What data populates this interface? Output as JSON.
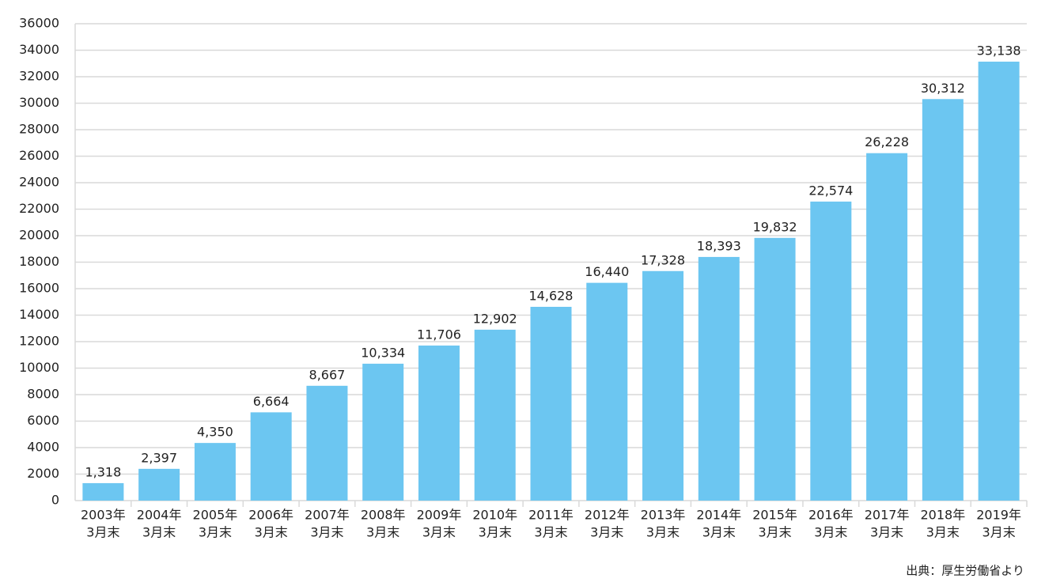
{
  "chart_data": {
    "type": "bar",
    "categories": [
      [
        "2003年",
        "3月末"
      ],
      [
        "2004年",
        "3月末"
      ],
      [
        "2005年",
        "3月末"
      ],
      [
        "2006年",
        "3月末"
      ],
      [
        "2007年",
        "3月末"
      ],
      [
        "2008年",
        "3月末"
      ],
      [
        "2009年",
        "3月末"
      ],
      [
        "2010年",
        "3月末"
      ],
      [
        "2011年",
        "3月末"
      ],
      [
        "2012年",
        "3月末"
      ],
      [
        "2013年",
        "3月末"
      ],
      [
        "2014年",
        "3月末"
      ],
      [
        "2015年",
        "3月末"
      ],
      [
        "2016年",
        "3月末"
      ],
      [
        "2017年",
        "3月末"
      ],
      [
        "2018年",
        "3月末"
      ],
      [
        "2019年",
        "3月末"
      ]
    ],
    "values": [
      1318,
      2397,
      4350,
      6664,
      8667,
      10334,
      11706,
      12902,
      14628,
      16440,
      17328,
      18393,
      19832,
      22574,
      26228,
      30312,
      33138
    ],
    "value_labels": [
      "1,318",
      "2,397",
      "4,350",
      "6,664",
      "8,667",
      "10,334",
      "11,706",
      "12,902",
      "14,628",
      "16,440",
      "17,328",
      "18,393",
      "19,832",
      "22,574",
      "26,228",
      "30,312",
      "33,138"
    ],
    "color": "#6cc6f1",
    "ylim": [
      0,
      36000
    ],
    "yticks": [
      0,
      2000,
      4000,
      6000,
      8000,
      10000,
      12000,
      14000,
      16000,
      18000,
      20000,
      22000,
      24000,
      26000,
      28000,
      30000,
      32000,
      34000,
      36000
    ],
    "grid": true,
    "source": "出典：厚生労働省より"
  }
}
